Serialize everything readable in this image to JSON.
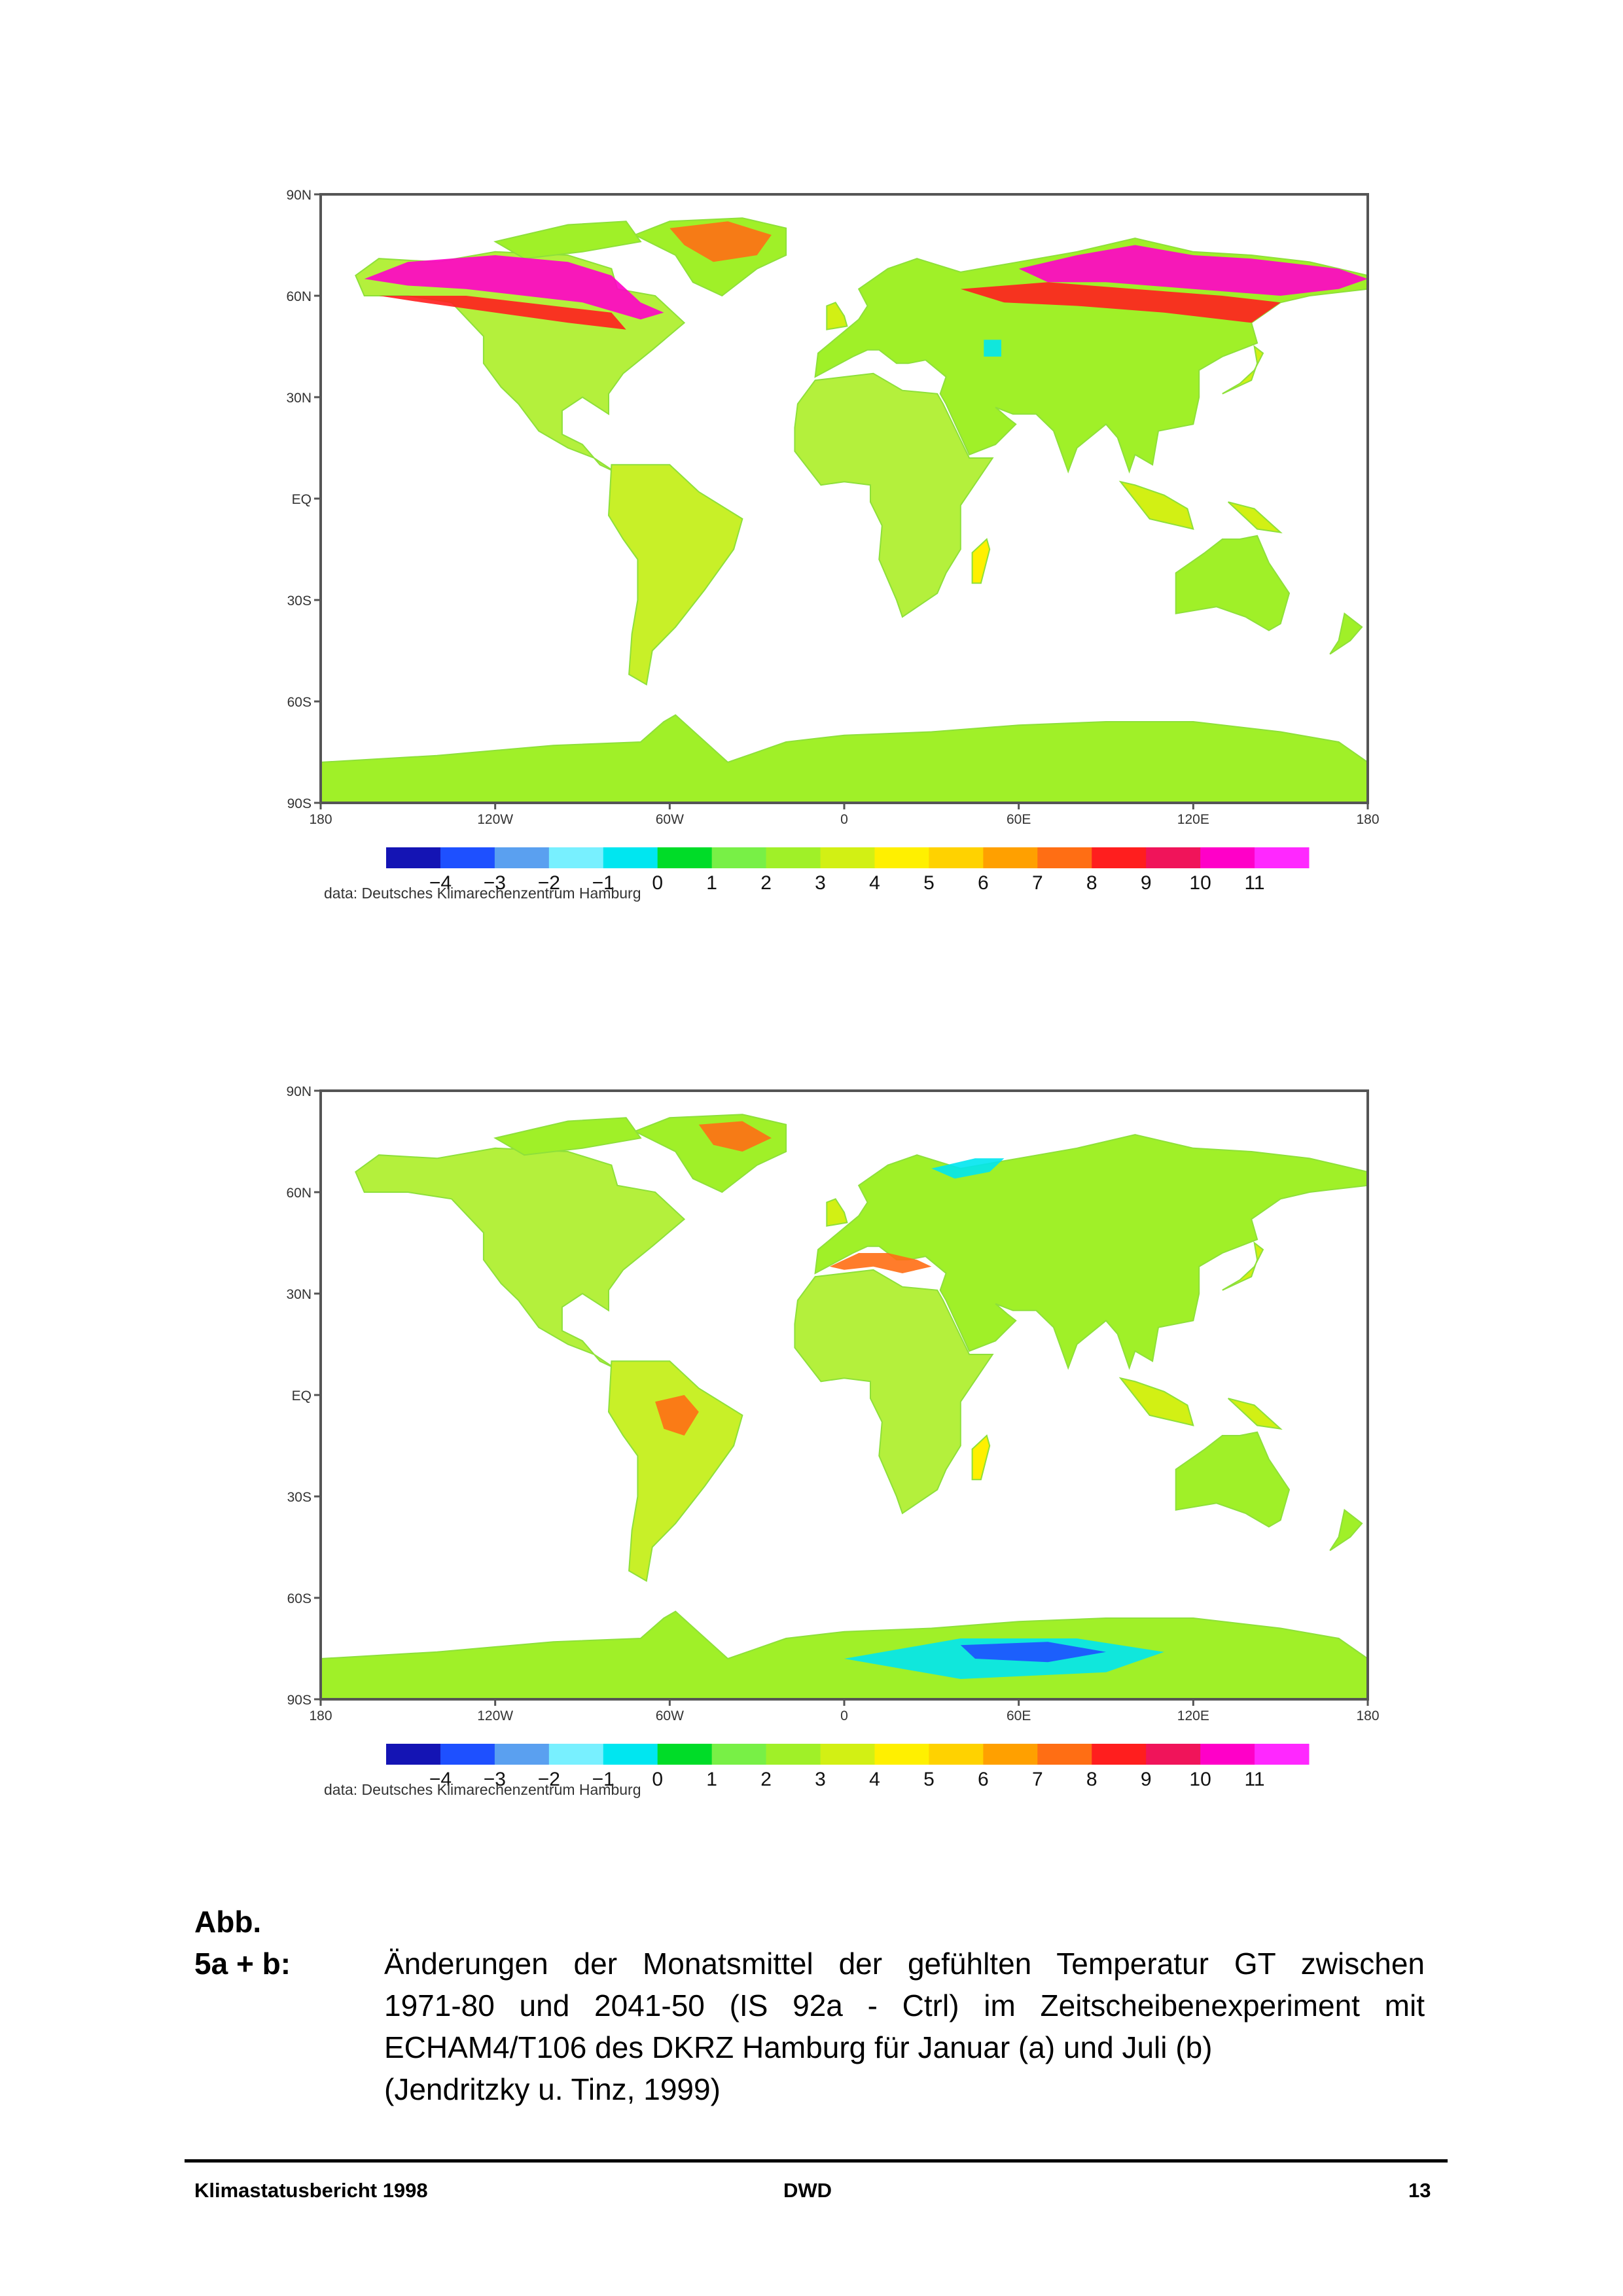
{
  "maps": [
    {
      "id": "a",
      "lat_labels": [
        "90N",
        "60N",
        "30N",
        "EQ",
        "30S",
        "60S",
        "90S"
      ],
      "lon_labels": [
        "180",
        "120W",
        "60W",
        "0",
        "60E",
        "120E",
        "180"
      ],
      "colorbar_values": [
        "−4",
        "−3",
        "−2",
        "−1",
        "0",
        "1",
        "2",
        "3",
        "4",
        "5",
        "6",
        "7",
        "8",
        "9",
        "10",
        "11"
      ],
      "source": "data: Deutsches Klimarechenzentrum Hamburg"
    },
    {
      "id": "b",
      "lat_labels": [
        "90N",
        "60N",
        "30N",
        "EQ",
        "30S",
        "60S",
        "90S"
      ],
      "lon_labels": [
        "180",
        "120W",
        "60W",
        "0",
        "60E",
        "120E",
        "180"
      ],
      "colorbar_values": [
        "−4",
        "−3",
        "−2",
        "−1",
        "0",
        "1",
        "2",
        "3",
        "4",
        "5",
        "6",
        "7",
        "8",
        "9",
        "10",
        "11"
      ],
      "source": "data: Deutsches Klimarechenzentrum Hamburg"
    }
  ],
  "colorbar_colors": [
    "#1414b4",
    "#1e50ff",
    "#5aa0f0",
    "#78f0ff",
    "#00e6f0",
    "#00dc28",
    "#78f046",
    "#a0f028",
    "#d2f014",
    "#fff000",
    "#ffd200",
    "#ffa000",
    "#ff6e14",
    "#ff1e1e",
    "#f0145a",
    "#ff00c8",
    "#ff28ff"
  ],
  "caption": {
    "label_line1": "Abb.",
    "label_line2": "5a + b:",
    "line1": "Änderungen der Monatsmittel der gefühlten Temperatur GT zwischen",
    "line2": "1971-80 und 2041-50 (IS 92a - Ctrl) im Zeitscheibenexperiment mit",
    "line3": "ECHAM4/T106 des DKRZ Hamburg für Januar (a) und Juli (b)",
    "line4": "(Jendritzky u. Tinz, 1999)"
  },
  "footer": {
    "left": "Klimastatusbericht 1998",
    "center": "DWD",
    "right": "13"
  }
}
